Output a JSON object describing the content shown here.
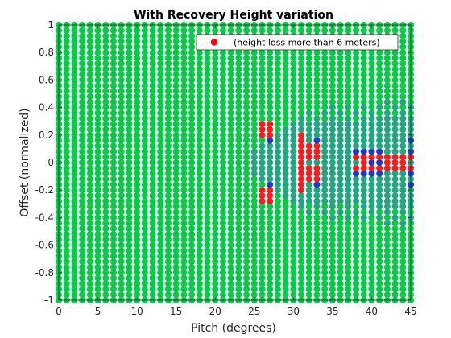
{
  "chart_data": {
    "type": "scatter",
    "title": "With Recovery Height variation",
    "xlabel": "Pitch (degrees)",
    "ylabel": "Offset (normalized)",
    "xlim": [
      0,
      45
    ],
    "ylim": [
      -1,
      1
    ],
    "xticks": [
      "0",
      "5",
      "10",
      "15",
      "20",
      "25",
      "30",
      "35",
      "40",
      "45"
    ],
    "yticks": [
      "1",
      "0.8",
      "0.6",
      "0.4",
      "0.2",
      "0",
      "-0.2",
      "-0.4",
      "-0.6",
      "-0.8",
      "-1"
    ],
    "grid": false,
    "legend": {
      "position": "top-right",
      "entries": [
        {
          "label": "(height loss more than 6 meters)",
          "color": "#ff0000"
        }
      ]
    },
    "x_step": 1,
    "y_step": 0.04,
    "base_color": "#00cc44",
    "colors": {
      "green": "#00cc44",
      "teal": "#1fa87e",
      "blue": "#1a3ad6",
      "red": "#ff1a1a"
    },
    "red_points": [
      [
        25,
        0.14
      ],
      [
        25,
        0.18
      ],
      [
        25,
        -0.14
      ],
      [
        25,
        -0.18
      ],
      [
        26,
        0.2
      ],
      [
        26,
        0.24
      ],
      [
        26,
        0.28
      ],
      [
        26,
        -0.2
      ],
      [
        26,
        -0.24
      ],
      [
        26,
        -0.28
      ],
      [
        27,
        0.2
      ],
      [
        27,
        0.24
      ],
      [
        27,
        0.28
      ],
      [
        27,
        -0.2
      ],
      [
        27,
        -0.24
      ],
      [
        27,
        -0.28
      ],
      [
        28,
        0.14
      ],
      [
        28,
        0.18
      ],
      [
        28,
        0.22
      ],
      [
        28,
        -0.14
      ],
      [
        28,
        -0.18
      ],
      [
        28,
        -0.22
      ],
      [
        29,
        0.1
      ],
      [
        29,
        0.14
      ],
      [
        29,
        -0.1
      ],
      [
        29,
        -0.14
      ],
      [
        30,
        0.06
      ],
      [
        30,
        0.1
      ],
      [
        30,
        -0.06
      ],
      [
        30,
        -0.1
      ],
      [
        31,
        -0.04
      ],
      [
        31,
        0
      ],
      [
        31,
        0.04
      ],
      [
        31,
        0.08
      ],
      [
        31,
        0.12
      ],
      [
        31,
        0.16
      ],
      [
        31,
        0.2
      ],
      [
        31,
        -0.08
      ],
      [
        31,
        -0.12
      ],
      [
        31,
        -0.16
      ],
      [
        31,
        -0.2
      ],
      [
        32,
        0.04
      ],
      [
        32,
        0.08
      ],
      [
        32,
        0.12
      ],
      [
        32,
        -0.04
      ],
      [
        32,
        -0.08
      ],
      [
        32,
        -0.12
      ],
      [
        33,
        0.04
      ],
      [
        33,
        0.08
      ],
      [
        33,
        0.12
      ],
      [
        33,
        -0.04
      ],
      [
        33,
        -0.08
      ],
      [
        33,
        -0.12
      ],
      [
        38,
        0.04
      ],
      [
        38,
        -0.04
      ],
      [
        39,
        0
      ],
      [
        39,
        0.04
      ],
      [
        39,
        -0.04
      ],
      [
        40,
        0.04
      ],
      [
        40,
        -0.04
      ],
      [
        41,
        0.04
      ],
      [
        41,
        -0.04
      ],
      [
        42,
        0
      ],
      [
        42,
        0.04
      ],
      [
        42,
        -0.04
      ],
      [
        43,
        0
      ],
      [
        43,
        0.04
      ],
      [
        43,
        -0.04
      ],
      [
        44,
        0
      ],
      [
        44,
        0.04
      ],
      [
        44,
        -0.04
      ],
      [
        45,
        0.04
      ],
      [
        45,
        -0.04
      ]
    ],
    "blue_points": [
      [
        25,
        0.22
      ],
      [
        25,
        -0.22
      ],
      [
        25,
        -0.1
      ],
      [
        26,
        0.14
      ],
      [
        26,
        -0.14
      ],
      [
        27,
        0.16
      ],
      [
        27,
        -0.16
      ],
      [
        28,
        0.26
      ],
      [
        28,
        -0.26
      ],
      [
        29,
        0.3
      ],
      [
        29,
        0.18
      ],
      [
        29,
        -0.18
      ],
      [
        29,
        -0.3
      ],
      [
        30,
        0.22
      ],
      [
        30,
        0.14
      ],
      [
        30,
        -0.14
      ],
      [
        30,
        -0.22
      ],
      [
        31,
        0.26
      ],
      [
        31,
        -0.26
      ],
      [
        32,
        0.18
      ],
      [
        32,
        -0.18
      ],
      [
        33,
        0.16
      ],
      [
        33,
        -0.16
      ],
      [
        38,
        0.08
      ],
      [
        38,
        -0.08
      ],
      [
        39,
        0.08
      ],
      [
        39,
        -0.08
      ],
      [
        40,
        0.08
      ],
      [
        40,
        0
      ],
      [
        40,
        -0.08
      ],
      [
        41,
        0.08
      ],
      [
        41,
        0
      ],
      [
        41,
        -0.08
      ],
      [
        45,
        0.08
      ],
      [
        45,
        0.16
      ],
      [
        45,
        -0.08
      ],
      [
        45,
        -0.16
      ],
      [
        45,
        -0.22
      ]
    ],
    "teal_region": {
      "x_from": 25,
      "x_to": 45,
      "peak_x": 31,
      "max_abs_offset_near": 0.38,
      "max_abs_offset_far": 0.46
    }
  }
}
